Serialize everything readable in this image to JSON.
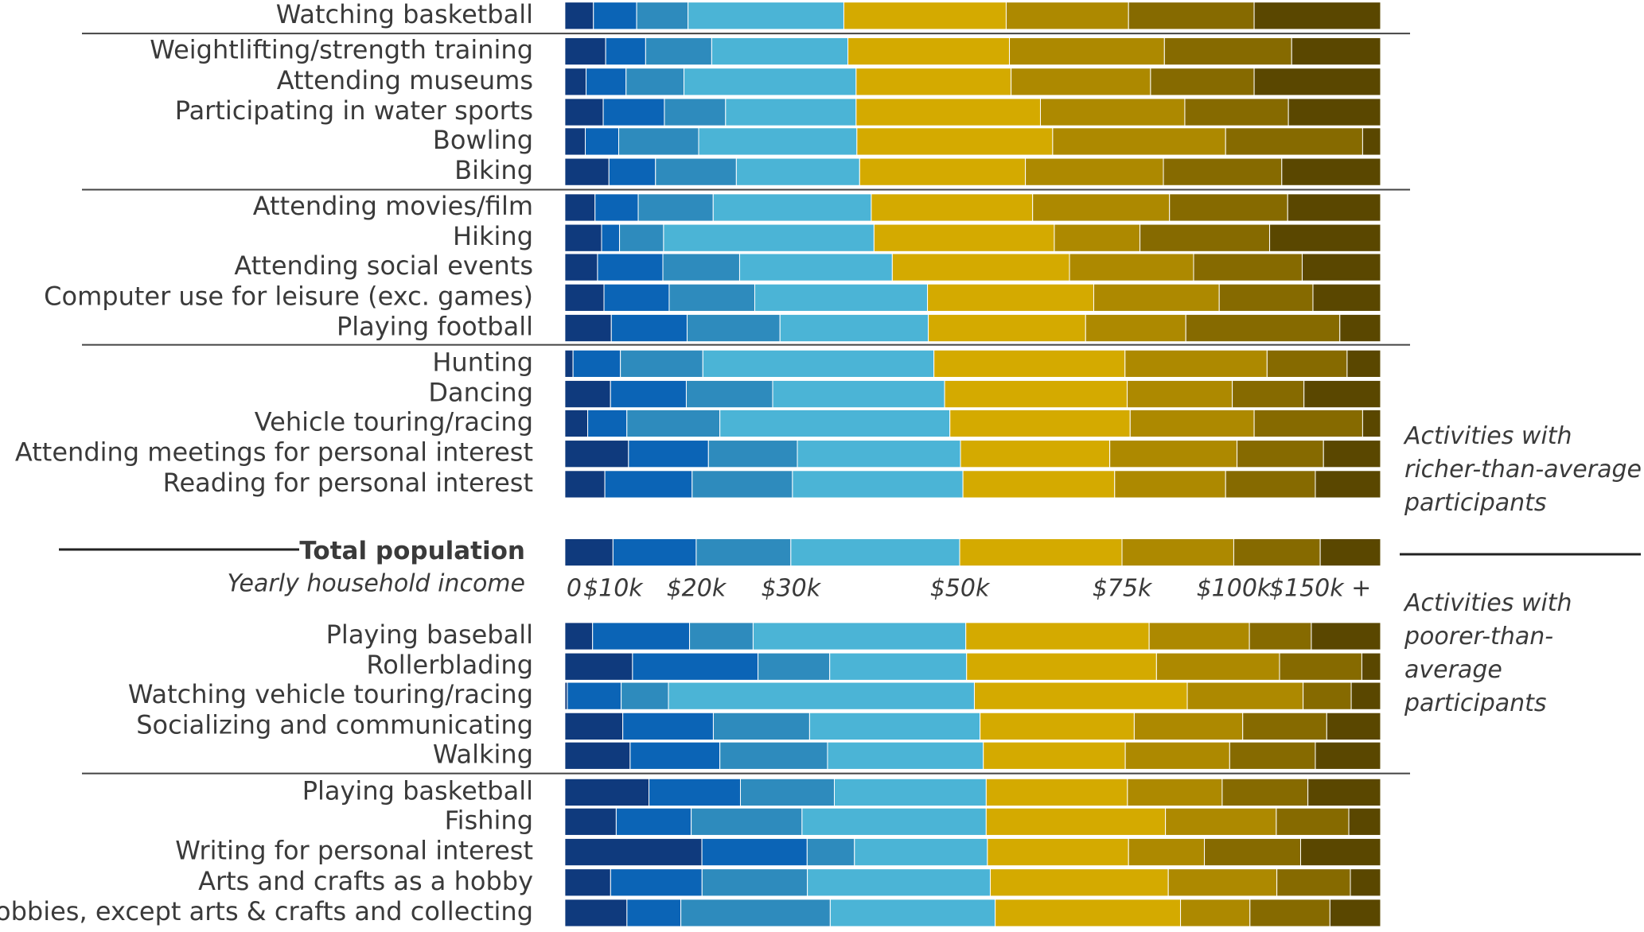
{
  "chart_data": {
    "type": "stacked-bar-horizontal",
    "x_label": "Yearly household income",
    "annotations": [
      "Activities with richer-than-average participants",
      "Activities with poorer-than-average participants"
    ],
    "categories": [
      "Watching basketball",
      "Weightlifting/strength training",
      "Attending museums",
      "Participating in water sports",
      "Bowling",
      "Biking",
      "Attending movies/film",
      "Hiking",
      "Attending social events",
      "Computer use for leisure (exc. games)",
      "Playing football",
      "Hunting",
      "Dancing",
      "Vehicle touring/racing",
      "Attending meetings for personal interest",
      "Reading for personal interest",
      "Total population",
      "Playing baseball",
      "Rollerblading",
      "Watching vehicle touring/racing",
      "Socializing and communicating",
      "Walking",
      "Playing basketball",
      "Fishing",
      "Writing for personal interest",
      "Arts and crafts as a hobby",
      "Hobbies, except arts & crafts and collecting"
    ],
    "series": [
      {
        "name": "0",
        "color": "#0f3a7d",
        "values": [
          3.5,
          5.0,
          2.6,
          4.7,
          2.5,
          5.4,
          3.7,
          4.5,
          4.0,
          4.8,
          5.7,
          1.0,
          5.6,
          2.8,
          7.8,
          4.9,
          5.9,
          3.4,
          8.3,
          0.3,
          7.1,
          8.0,
          10.3,
          6.3,
          16.8,
          5.6,
          7.6
        ]
      },
      {
        "name": "$10k",
        "color": "#0b64b6",
        "values": [
          5.3,
          4.9,
          4.9,
          7.5,
          4.1,
          5.7,
          5.3,
          2.2,
          8.0,
          8.0,
          9.3,
          5.8,
          9.3,
          4.8,
          9.8,
          10.7,
          10.2,
          11.9,
          15.4,
          6.6,
          11.1,
          11.0,
          11.2,
          9.2,
          12.9,
          11.2,
          6.6
        ]
      },
      {
        "name": "$20k",
        "color": "#2e8bbd",
        "values": [
          6.3,
          8.1,
          7.1,
          7.5,
          9.8,
          9.9,
          9.2,
          5.4,
          9.4,
          10.5,
          11.4,
          10.1,
          10.6,
          11.4,
          10.9,
          12.3,
          11.6,
          7.8,
          8.8,
          5.8,
          11.8,
          13.2,
          11.5,
          13.6,
          5.8,
          12.9,
          18.3
        ]
      },
      {
        "name": "$30k",
        "color": "#4bb4d6",
        "values": [
          19.1,
          16.7,
          21.1,
          16.0,
          19.4,
          15.1,
          19.4,
          25.8,
          18.7,
          21.2,
          18.2,
          28.3,
          21.1,
          28.2,
          20.0,
          20.9,
          20.7,
          26.1,
          16.8,
          37.5,
          20.9,
          19.1,
          18.6,
          22.6,
          16.3,
          22.4,
          20.2
        ]
      },
      {
        "name": "$50k",
        "color": "#d4aa00",
        "values": [
          19.9,
          19.8,
          19.0,
          22.6,
          24.0,
          20.3,
          19.8,
          22.1,
          21.7,
          20.4,
          19.3,
          23.4,
          22.4,
          22.1,
          18.3,
          18.6,
          19.9,
          22.5,
          23.3,
          26.1,
          18.9,
          17.4,
          17.3,
          22.0,
          17.3,
          21.8,
          22.7
        ]
      },
      {
        "name": "$75k",
        "color": "#ad8900",
        "values": [
          15.0,
          19.0,
          17.1,
          17.7,
          21.2,
          16.9,
          16.8,
          10.5,
          15.2,
          15.4,
          12.3,
          17.4,
          12.9,
          15.2,
          15.6,
          13.6,
          13.7,
          12.3,
          15.1,
          14.2,
          13.3,
          12.8,
          11.6,
          13.6,
          9.3,
          13.3,
          8.5
        ]
      },
      {
        "name": "$100k",
        "color": "#866a00",
        "values": [
          15.4,
          15.6,
          12.7,
          12.7,
          16.8,
          14.5,
          14.5,
          15.9,
          13.3,
          11.5,
          18.9,
          9.8,
          8.8,
          13.3,
          10.6,
          11.0,
          10.6,
          7.6,
          10.1,
          5.9,
          10.3,
          10.5,
          10.5,
          8.9,
          11.8,
          9.0,
          9.8
        ]
      },
      {
        "name": "$150k +",
        "color": "#5a4700",
        "values": [
          15.5,
          10.9,
          15.5,
          11.3,
          2.2,
          12.1,
          11.4,
          13.6,
          9.6,
          8.3,
          5.0,
          4.1,
          9.4,
          2.2,
          7.0,
          8.0,
          7.4,
          8.5,
          2.3,
          3.6,
          6.6,
          8.0,
          8.9,
          3.9,
          9.8,
          3.7,
          6.2
        ]
      }
    ]
  }
}
